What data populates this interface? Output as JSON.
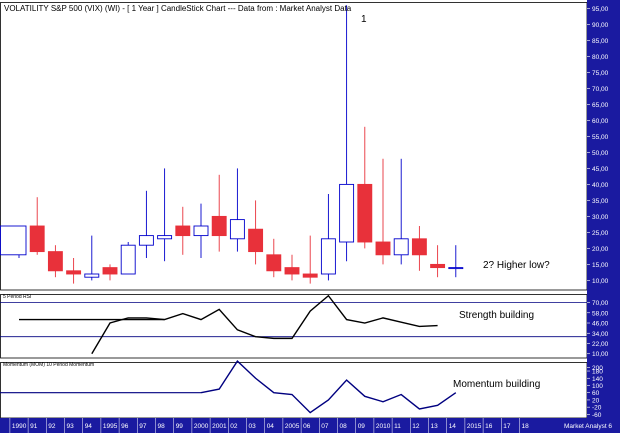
{
  "colors": {
    "up": "#0000cc",
    "down": "#e8313a",
    "line": "#000080",
    "axis_bg": "#1a1aa0",
    "axis_text": "#ffffff"
  },
  "chart_data": [
    {
      "type": "candlestick",
      "title": "VOLATILITY S&P 500 (VIX) (WI) - [ 1 Year ] CandleStick Chart --- Data from : Market Analyst Data",
      "annotations": [
        {
          "text": "1",
          "at": "08"
        },
        {
          "text": "2? Higher low?",
          "at": "14"
        }
      ],
      "yticks": [
        10,
        15,
        20,
        25,
        30,
        35,
        40,
        45,
        50,
        55,
        60,
        65,
        70,
        75,
        80,
        85,
        90,
        95
      ],
      "ytick_labels": [
        "10,00",
        "15,00",
        "20,00",
        "25,00",
        "30,00",
        "35,00",
        "40,00",
        "45,00",
        "50,00",
        "55,00",
        "60,00",
        "65,00",
        "70,00",
        "75,00",
        "80,00",
        "85,00",
        "90,00",
        "95,00"
      ],
      "ylim": [
        7,
        97
      ],
      "grid": false,
      "candles": [
        {
          "x": "1990",
          "o": 18,
          "h": 27,
          "l": 17,
          "c": 27,
          "partial": true
        },
        {
          "x": "91",
          "o": 27,
          "h": 36,
          "l": 18,
          "c": 19
        },
        {
          "x": "92",
          "o": 19,
          "h": 21,
          "l": 11,
          "c": 13
        },
        {
          "x": "93",
          "o": 13,
          "h": 17,
          "l": 9,
          "c": 12
        },
        {
          "x": "94",
          "o": 11,
          "h": 24,
          "l": 10,
          "c": 12
        },
        {
          "x": "1995",
          "o": 14,
          "h": 15,
          "l": 10,
          "c": 12
        },
        {
          "x": "96",
          "o": 12,
          "h": 22,
          "l": 12,
          "c": 21
        },
        {
          "x": "97",
          "o": 21,
          "h": 38,
          "l": 17,
          "c": 24
        },
        {
          "x": "98",
          "o": 23,
          "h": 45,
          "l": 16,
          "c": 24
        },
        {
          "x": "99",
          "o": 27,
          "h": 33,
          "l": 18,
          "c": 24
        },
        {
          "x": "2000",
          "o": 24,
          "h": 34,
          "l": 17,
          "c": 27
        },
        {
          "x": "2001",
          "o": 30,
          "h": 43,
          "l": 19,
          "c": 24
        },
        {
          "x": "02",
          "o": 23,
          "h": 45,
          "l": 19,
          "c": 29
        },
        {
          "x": "03",
          "o": 26,
          "h": 35,
          "l": 15,
          "c": 19
        },
        {
          "x": "04",
          "o": 18,
          "h": 23,
          "l": 11,
          "c": 13
        },
        {
          "x": "2005",
          "o": 14,
          "h": 18,
          "l": 10,
          "c": 12
        },
        {
          "x": "06",
          "o": 12,
          "h": 24,
          "l": 9,
          "c": 11
        },
        {
          "x": "07",
          "o": 12,
          "h": 37,
          "l": 10,
          "c": 23
        },
        {
          "x": "08",
          "o": 22,
          "h": 96,
          "l": 16,
          "c": 40
        },
        {
          "x": "09",
          "o": 40,
          "h": 58,
          "l": 20,
          "c": 22
        },
        {
          "x": "2010",
          "o": 22,
          "h": 48,
          "l": 15,
          "c": 18
        },
        {
          "x": "11",
          "o": 18,
          "h": 48,
          "l": 15,
          "c": 23
        },
        {
          "x": "12",
          "o": 23,
          "h": 27,
          "l": 13,
          "c": 18
        },
        {
          "x": "13",
          "o": 15,
          "h": 21,
          "l": 11,
          "c": 14
        },
        {
          "x": "14",
          "o": 14,
          "h": 21,
          "l": 11,
          "c": 14
        }
      ]
    },
    {
      "type": "line",
      "title": "5 Period RSI",
      "annotation": "Strength building",
      "yticks": [
        10,
        22,
        34,
        46,
        58,
        70
      ],
      "ytick_labels": [
        "10,00",
        "22,00",
        "34,00",
        "46,00",
        "58,00",
        "70,00"
      ],
      "ylim": [
        5,
        80
      ],
      "reference_lines": [
        70,
        30
      ],
      "x": [
        "1990",
        "91",
        "92",
        "93",
        "94",
        "1995",
        "96",
        "97",
        "98",
        "99",
        "2000",
        "2001",
        "02",
        "03",
        "04",
        "2005",
        "06",
        "07",
        "08",
        "09",
        "2010",
        "11",
        "12",
        "13",
        "14"
      ],
      "values": [
        50,
        50,
        50,
        50,
        50,
        50,
        50,
        50,
        50,
        null,
        null,
        null,
        null,
        null,
        null,
        null,
        null,
        null,
        null,
        null,
        null,
        null,
        null,
        null,
        null
      ],
      "series": [
        {
          "values": [
            null,
            null,
            null,
            null,
            10,
            46,
            52,
            52,
            50,
            57,
            50,
            62,
            38,
            30,
            28,
            28,
            60,
            78,
            50,
            46,
            52,
            47,
            42,
            43,
            null
          ]
        }
      ]
    },
    {
      "type": "line",
      "title": "Momentum (MOM) 10 Period Momentum",
      "annotation": "Momentum building",
      "yticks": [
        -60,
        -20,
        20,
        60,
        100,
        140,
        180,
        200
      ],
      "ytick_labels": [
        "-60",
        "-20",
        "20",
        "60",
        "100",
        "140",
        "180",
        "200"
      ],
      "ylim": [
        -80,
        230
      ],
      "baseline": 60,
      "x": [
        "1990",
        "91",
        "92",
        "93",
        "94",
        "1995",
        "96",
        "97",
        "98",
        "99",
        "2000",
        "2001",
        "02",
        "03",
        "04",
        "2005",
        "06",
        "07",
        "08",
        "09",
        "2010",
        "11",
        "12",
        "13",
        "14"
      ],
      "series": [
        {
          "values": [
            null,
            null,
            null,
            null,
            null,
            null,
            null,
            null,
            null,
            null,
            60,
            80,
            235,
            140,
            60,
            50,
            -50,
            20,
            130,
            40,
            10,
            50,
            -30,
            -10,
            60
          ]
        }
      ]
    }
  ],
  "x_axis_labels": [
    "1990",
    "91",
    "92",
    "93",
    "94",
    "1995",
    "96",
    "97",
    "98",
    "99",
    "2000",
    "2001",
    "02",
    "03",
    "04",
    "2005",
    "06",
    "07",
    "08",
    "09",
    "2010",
    "11",
    "12",
    "13",
    "14",
    "2015",
    "16",
    "17",
    "18"
  ],
  "footer_brand": "Market Analyst 6"
}
